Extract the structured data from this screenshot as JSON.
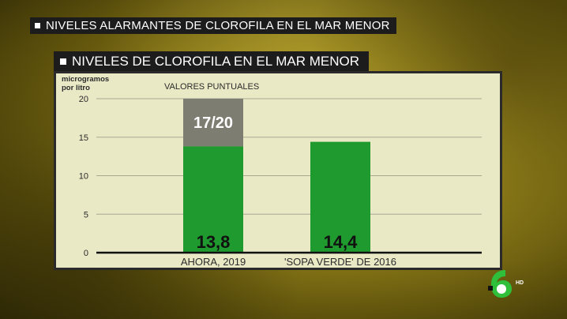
{
  "banner": {
    "title": "NIVELES ALARMANTES DE CLOROFILA EN EL MAR MENOR"
  },
  "panel": {
    "title": "NIVELES DE CLOROFILA EN EL MAR MENOR"
  },
  "channel": {
    "logo_icon": "lasexta-logo-icon",
    "hd_label": "HD"
  },
  "chart_data": {
    "type": "bar",
    "ylabel": "microgramos por litro",
    "ylim": [
      0,
      20
    ],
    "yticks": [
      0,
      5,
      10,
      15,
      20
    ],
    "grid": true,
    "categories": [
      "AHORA, 2019",
      "'SOPA VERDE' DE 2016"
    ],
    "values": [
      13.8,
      14.4
    ],
    "value_labels": [
      "13,8",
      "14,4"
    ],
    "annotation": {
      "label": "VALORES PUNTUALES",
      "range_label": "17/20",
      "category": "AHORA, 2019",
      "range": [
        13.8,
        20
      ]
    },
    "colors": {
      "bar": "#1f9a2e",
      "range": "#7d7d72",
      "background": "#e9e9c6"
    }
  }
}
